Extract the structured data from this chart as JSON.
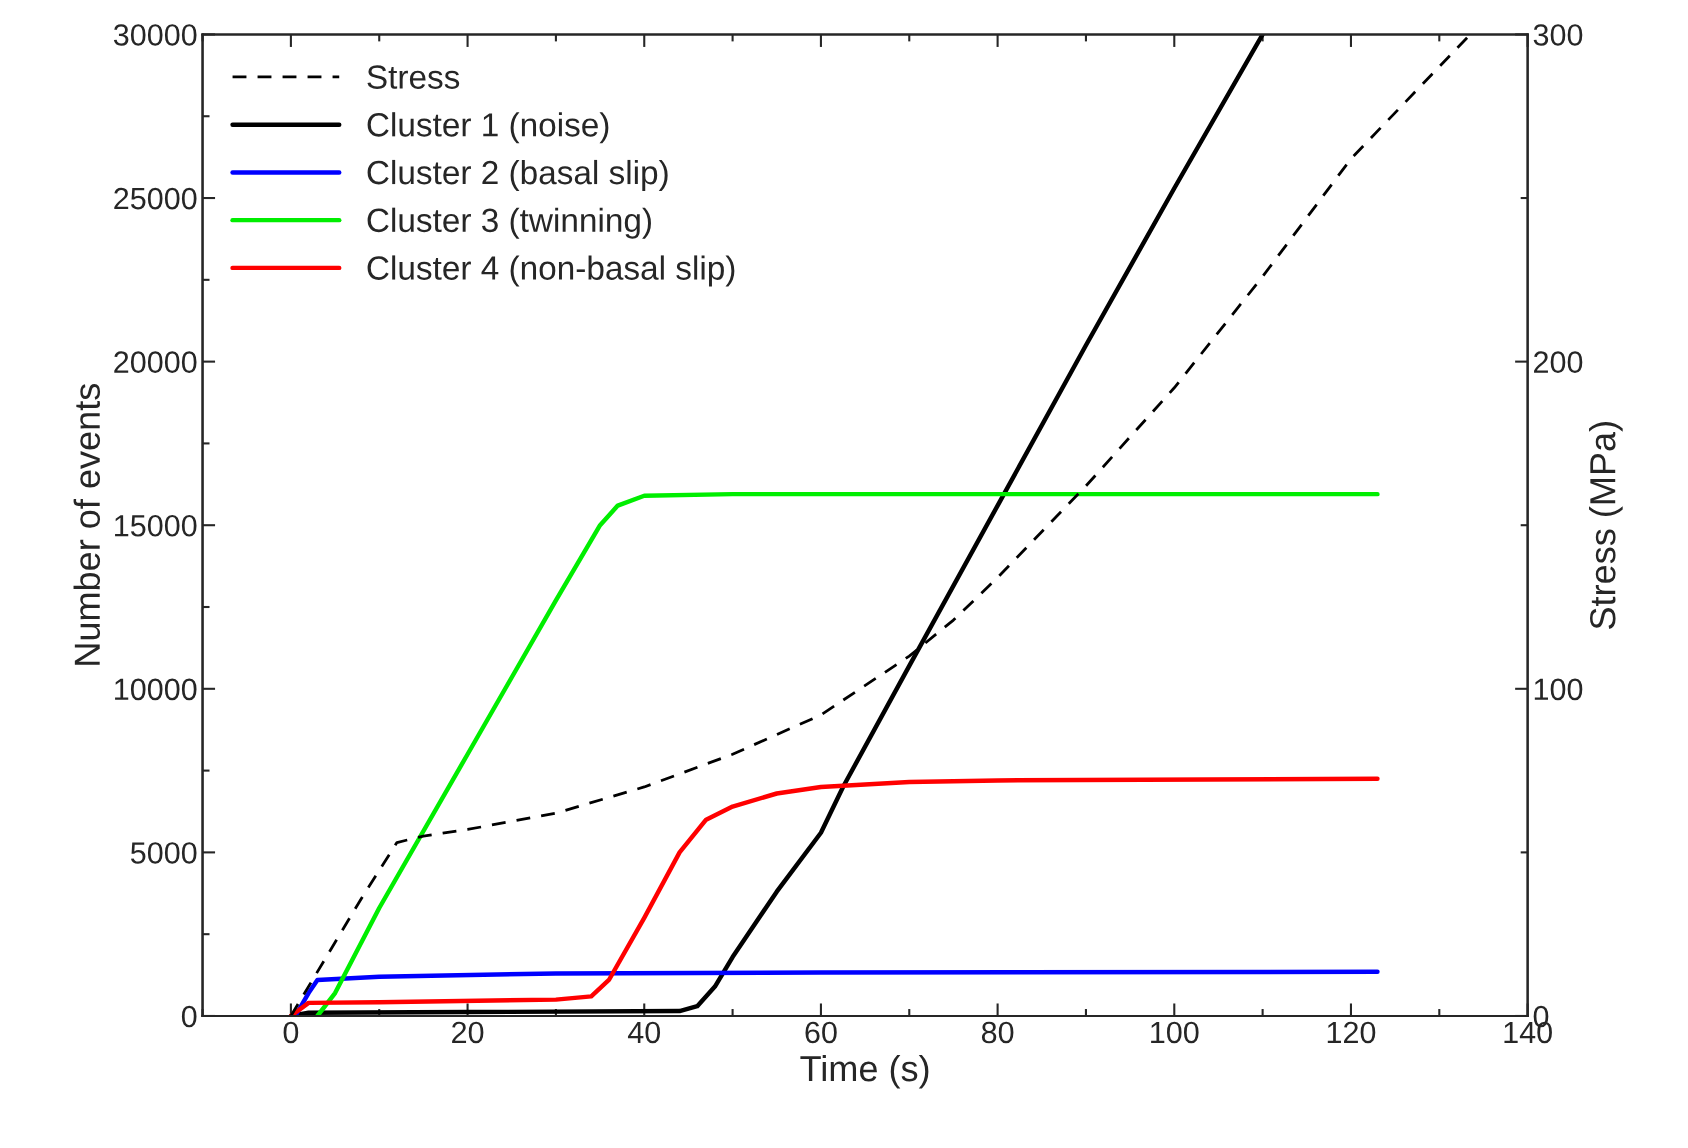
{
  "chart_data": {
    "type": "line",
    "xlabel": "Time (s)",
    "ylabel": "Number of events",
    "y2label": "Stress (MPa)",
    "xlim": [
      -10,
      140
    ],
    "xticks": [
      0,
      20,
      40,
      60,
      80,
      100,
      120,
      140
    ],
    "ylim": [
      0,
      30000
    ],
    "yticks": [
      0,
      5000,
      10000,
      15000,
      20000,
      25000,
      30000
    ],
    "y2lim": [
      0,
      300
    ],
    "y2ticks": [
      0,
      100,
      200,
      300
    ],
    "legend": "top left",
    "grid": false,
    "series": [
      {
        "name": "Stress",
        "color": "#000000",
        "axis": "y2",
        "line_style": "dashed",
        "x": [
          0,
          4,
          8,
          12,
          15,
          20,
          30,
          40,
          50,
          60,
          70,
          75,
          80,
          90,
          100,
          110,
          120,
          133.5
        ],
        "values": [
          0,
          18,
          36,
          53,
          55,
          57,
          62,
          70,
          80,
          92,
          110,
          121,
          134,
          162,
          192,
          226,
          262,
          300
        ]
      },
      {
        "name": "Cluster 1 (noise)",
        "color": "#000000",
        "x": [
          0,
          2,
          20,
          44,
          46,
          48,
          50,
          55,
          60,
          62.5,
          70,
          80,
          90,
          100,
          110
        ],
        "values": [
          0,
          100,
          120,
          150,
          300,
          900,
          1800,
          3800,
          5600,
          7000,
          10700,
          15600,
          20500,
          25300,
          30000
        ]
      },
      {
        "name": "Cluster 2 (basal slip)",
        "color": "#0000ff",
        "x": [
          0.5,
          2,
          3,
          10,
          30,
          60,
          123
        ],
        "values": [
          0,
          700,
          1100,
          1200,
          1300,
          1330,
          1350
        ]
      },
      {
        "name": "Cluster 3 (twinning)",
        "color": "#00ee00",
        "x": [
          3,
          5,
          10,
          20,
          30,
          35,
          37,
          40,
          50,
          123
        ],
        "values": [
          0,
          700,
          3300,
          8000,
          12700,
          15000,
          15600,
          15900,
          15950,
          15950
        ]
      },
      {
        "name": "Cluster 4 (non-basal slip)",
        "color": "#ff0000",
        "x": [
          0,
          2,
          10,
          30,
          34,
          36,
          40,
          44,
          47,
          50,
          55,
          60,
          70,
          80,
          123
        ],
        "values": [
          0,
          400,
          420,
          500,
          600,
          1100,
          3000,
          5000,
          6000,
          6400,
          6800,
          7000,
          7150,
          7200,
          7250
        ]
      }
    ]
  }
}
